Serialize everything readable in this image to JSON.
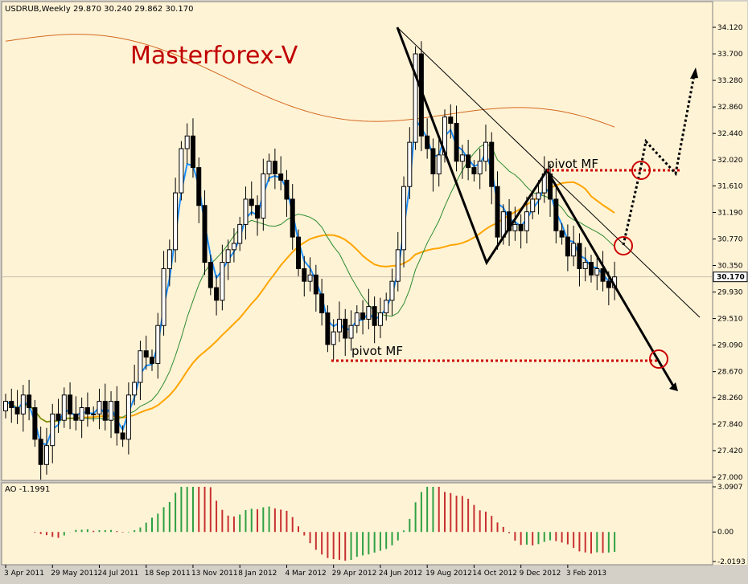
{
  "header": {
    "symbol_info": "USDRUB,Weekly  29.870 30.240 29.862 30.170"
  },
  "watermark": {
    "text": "Masterforex-V"
  },
  "indicator": {
    "label": "AO -1.1991"
  },
  "annotations": {
    "pivot_upper": "pivot MF",
    "pivot_lower": "pivot MF"
  },
  "colors": {
    "background": "#fff3d6",
    "frame": "#d4d0c8",
    "ema_fast": "#1e90ff",
    "sma_mid": "#2e8b2e",
    "sma_orange": "#ffa500",
    "sma_long": "#d2691e",
    "watermark": "#c00000",
    "ao_up": "#2ea043",
    "ao_down": "#c83030",
    "pivot_line": "#cc0000"
  },
  "chart_data": [
    {
      "type": "candlestick",
      "title": "USDRUB,Weekly",
      "ylim": [
        27.0,
        34.12
      ],
      "y_ticks": [
        "34.120",
        "33.700",
        "33.280",
        "32.860",
        "32.440",
        "32.020",
        "31.610",
        "31.190",
        "30.770",
        "30.350",
        "29.930",
        "29.510",
        "29.090",
        "28.670",
        "28.260",
        "27.840",
        "27.420",
        "27.000"
      ],
      "x_ticks": [
        "3 Apr 2011",
        "29 May 2011",
        "24 Jul 2011",
        "18 Sep 2011",
        "13 Nov 2011",
        "8 Jan 2012",
        "4 Mar 2012",
        "29 Apr 2012",
        "24 Jun 2012",
        "19 Aug 2012",
        "14 Oct 2012",
        "9 Dec 2012",
        "3 Feb 2013"
      ],
      "last_price": "30.170",
      "close": [
        28.2,
        28.1,
        28.0,
        28.3,
        28.1,
        27.6,
        27.2,
        27.5,
        28.0,
        27.9,
        28.3,
        28.0,
        27.9,
        28.1,
        28.0,
        28.0,
        28.2,
        27.9,
        28.2,
        27.7,
        27.6,
        28.3,
        28.5,
        29.0,
        28.9,
        28.8,
        29.4,
        30.3,
        30.6,
        31.5,
        32.2,
        32.4,
        31.9,
        31.3,
        30.4,
        30.0,
        29.8,
        30.4,
        30.6,
        30.7,
        31.0,
        31.4,
        31.3,
        31.1,
        31.8,
        32.0,
        31.8,
        31.7,
        31.4,
        30.8,
        30.3,
        30.1,
        30.2,
        29.9,
        29.6,
        29.1,
        29.3,
        29.5,
        29.2,
        29.4,
        29.6,
        29.5,
        29.7,
        29.4,
        29.6,
        29.8,
        30.1,
        30.6,
        31.6,
        32.3,
        33.7,
        32.4,
        32.2,
        31.8,
        32.1,
        32.7,
        32.6,
        32.0,
        32.1,
        31.9,
        31.8,
        32.0,
        32.3,
        31.6,
        30.8,
        31.2,
        30.9,
        31.0,
        30.9,
        31.2,
        31.4,
        31.5,
        31.8,
        31.4,
        30.9,
        30.8,
        30.5,
        30.7,
        30.3,
        30.4,
        30.2,
        30.3,
        30.1,
        30.0,
        30.17
      ],
      "sma_long_start_end": [
        33.9,
        32.3
      ]
    },
    {
      "type": "bar",
      "title": "AO -1.1991",
      "ylim": [
        -2.0193,
        3.0907
      ],
      "y_ticks": [
        "3.0907",
        "0.00",
        "-2.0193"
      ]
    }
  ]
}
